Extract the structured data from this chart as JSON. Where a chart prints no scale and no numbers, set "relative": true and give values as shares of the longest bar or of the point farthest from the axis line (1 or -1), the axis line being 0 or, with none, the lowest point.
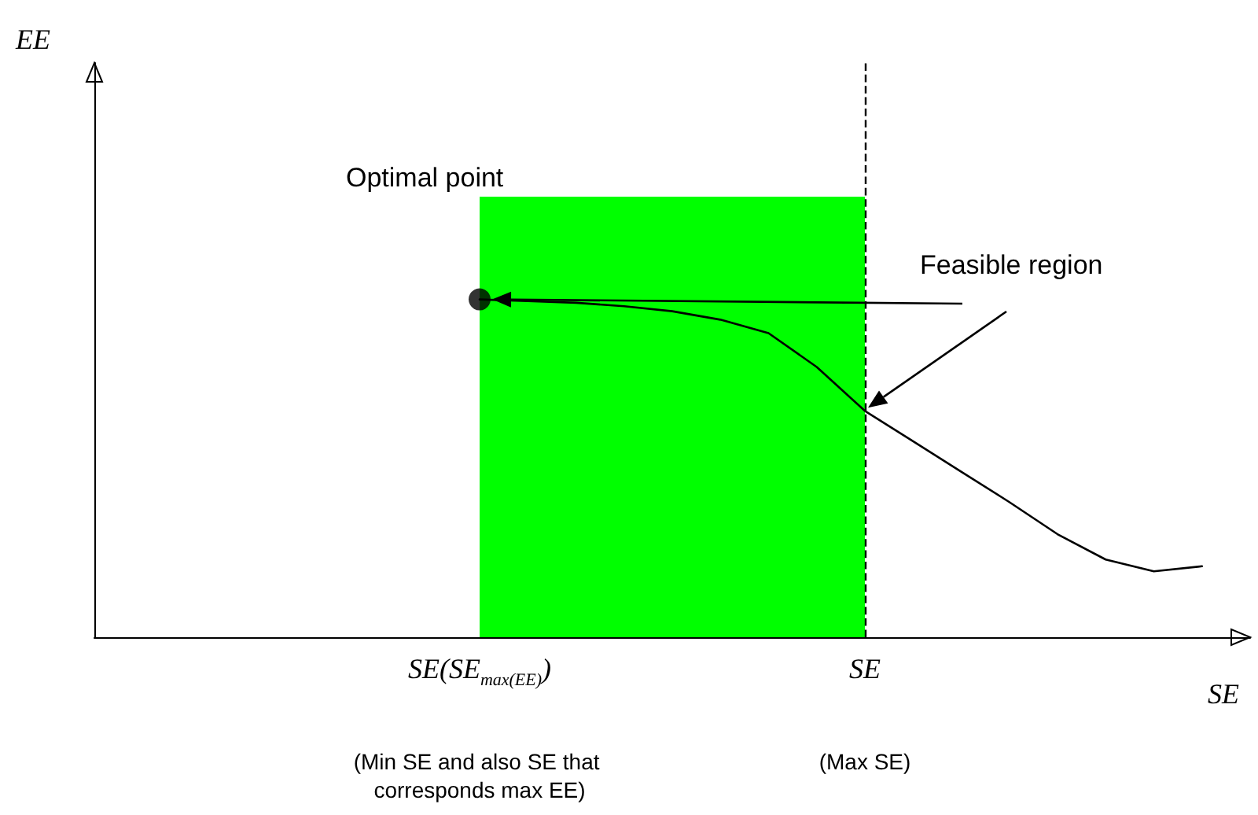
{
  "chart_data": {
    "type": "line",
    "relative": true,
    "xlabel": "SE",
    "categories": [
      null,
      null,
      null,
      null,
      null,
      null,
      null,
      null,
      "SE(SE$_{max(EE)}$)",
      null,
      null,
      null,
      null,
      null,
      null,
      null,
      "SE",
      null,
      null,
      null,
      null,
      null,
      null,
      null,
      null
    ],
    "series": [
      {
        "color": "#000000",
        "values": [
          null,
          null,
          null,
          null,
          null,
          null,
          null,
          null,
          1.0,
          0.995,
          0.99,
          0.98,
          0.965,
          0.94,
          0.9,
          0.8,
          0.67,
          0.58,
          0.49,
          0.4,
          0.305,
          0.23,
          0.195,
          0.21,
          null
        ]
      },
      {
        "type": "scatter",
        "color": "#000000",
        "x": [
          "SE(SE$_{max(EE)}$)"
        ],
        "values": [
          1.0
        ]
      }
    ],
    "bands": [
      {
        "axis": "x",
        "from": "SE(SE$_{max(EE)}$)",
        "to": "SE",
        "color": "#00ff00"
      }
    ],
    "ref_lines": [
      {
        "axis": "x",
        "value": "SE",
        "color": "#000000",
        "line_style": "dashed"
      }
    ],
    "annotations": [
      "Optimal point",
      "Feasible region",
      "(Min SE and also SE that corresponds max EE)",
      "(Max SE)",
      "EE"
    ],
    "grid": false
  }
}
